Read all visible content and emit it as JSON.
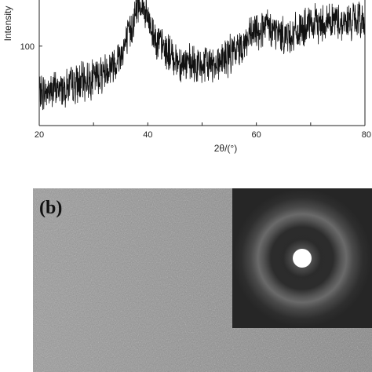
{
  "chart_data": {
    "type": "line",
    "title": "",
    "xlabel": "2θ/(°)",
    "ylabel": "Intensity",
    "xlim": [
      20,
      80
    ],
    "x_ticks": [
      "20",
      "40",
      "60",
      "80"
    ],
    "y_ticks": [
      "100"
    ],
    "grid": false,
    "series": [
      {
        "x": [
          20,
          22,
          24,
          26,
          28,
          30,
          32,
          34,
          35,
          36,
          37,
          38,
          38.5,
          39,
          40,
          41,
          42,
          44,
          46,
          48,
          50,
          52,
          54,
          56,
          58,
          60,
          62,
          64,
          66,
          68,
          70,
          72,
          74,
          76,
          78,
          80
        ],
        "y": [
          55,
          58,
          60,
          63,
          66,
          70,
          76,
          85,
          93,
          103,
          118,
          136,
          142,
          138,
          125,
          112,
          103,
          92,
          85,
          82,
          81,
          84,
          88,
          95,
          104,
          114,
          118,
          112,
          110,
          114,
          119,
          122,
          125,
          122,
          124,
          125
        ]
      }
    ]
  },
  "panel_b": {
    "label": "(b)",
    "inset_colors": {
      "background": "#2a2a2a",
      "ring": "#6a6a6a",
      "center": "#ffffff"
    }
  }
}
